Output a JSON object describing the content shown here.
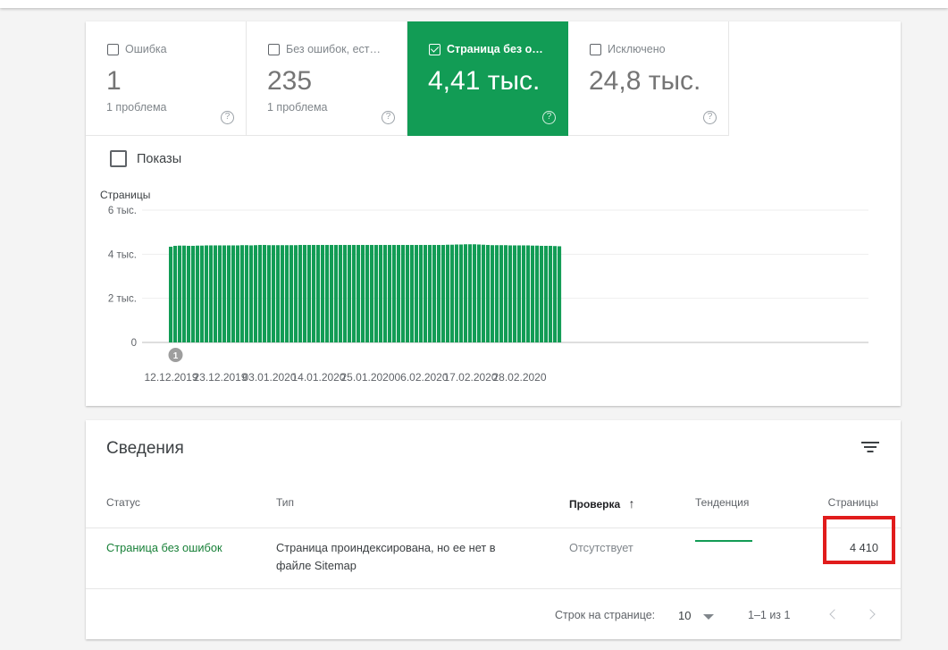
{
  "tabs": [
    {
      "label": "Ошибка",
      "value": "1",
      "sub": "1 проблема",
      "checked": false
    },
    {
      "label": "Без ошибок, ест…",
      "value": "235",
      "sub": "1 проблема",
      "checked": false
    },
    {
      "label": "Страница без о…",
      "value": "4,41 тыс.",
      "sub": "",
      "checked": true
    },
    {
      "label": "Исключено",
      "value": "24,8 тыс.",
      "sub": "",
      "checked": false
    }
  ],
  "help_glyph": "?",
  "impressions_label": "Показы",
  "chart_data": {
    "type": "bar",
    "ylabel": "Страницы",
    "ylim": [
      0,
      6000
    ],
    "yticks": [
      {
        "value": 6000,
        "label": "6 тыс."
      },
      {
        "value": 4000,
        "label": "4 тыс."
      },
      {
        "value": 2000,
        "label": "2 тыс."
      },
      {
        "value": 0,
        "label": "0"
      }
    ],
    "x_start": "2019-12-12",
    "x_tick_labels": [
      "12.12.2019",
      "23.12.2019",
      "03.01.2020",
      "14.01.2020",
      "25.01.2020",
      "06.02.2020",
      "17.02.2020",
      "28.02.2020"
    ],
    "x_tick_dates": [
      "2019-12-12",
      "2019-12-23",
      "2020-01-03",
      "2020-01-14",
      "2020-01-25",
      "2020-02-06",
      "2020-02-17",
      "2020-02-28"
    ],
    "series": [
      {
        "color": "#129c55",
        "values": [
          4340,
          4380,
          4390,
          4390,
          4380,
          4380,
          4390,
          4390,
          4400,
          4400,
          4400,
          4400,
          4400,
          4400,
          4400,
          4400,
          4410,
          4410,
          4400,
          4410,
          4420,
          4420,
          4410,
          4410,
          4410,
          4410,
          4410,
          4410,
          4410,
          4420,
          4420,
          4420,
          4420,
          4420,
          4420,
          4420,
          4420,
          4420,
          4420,
          4420,
          4420,
          4420,
          4420,
          4420,
          4420,
          4420,
          4420,
          4420,
          4420,
          4420,
          4420,
          4420,
          4420,
          4420,
          4420,
          4420,
          4420,
          4420,
          4420,
          4420,
          4420,
          4420,
          4430,
          4430,
          4440,
          4440,
          4450,
          4450,
          4450,
          4440,
          4430,
          4420,
          4410,
          4410,
          4410,
          4410,
          4400,
          4400,
          4400,
          4400,
          4400,
          4390,
          4390,
          4380,
          4380,
          4380,
          4370,
          4360
        ]
      }
    ],
    "annotations": [
      {
        "date": "2019-12-13",
        "label": "1"
      }
    ]
  },
  "details": {
    "title": "Сведения",
    "columns": {
      "status": "Статус",
      "type": "Тип",
      "validation": "Проверка",
      "sort_arrow": "↑",
      "trend": "Тенденция",
      "pages": "Страницы"
    },
    "rows": [
      {
        "status": "Страница без ошибок",
        "type_line1": "Страница проиндексирована, но ее нет в",
        "type_line2": "файле Sitemap",
        "validation": "Отсутствует",
        "pages": "4 410"
      }
    ],
    "footer": {
      "rows_per_page_label": "Строк на странице:",
      "rows_per_page": "10",
      "range": "1–1 из 1"
    }
  }
}
